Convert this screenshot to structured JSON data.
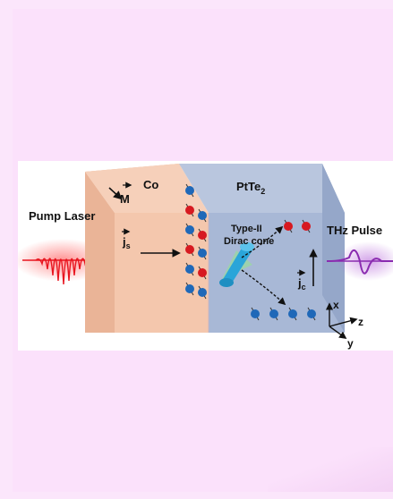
{
  "labels": {
    "pump_laser": "Pump Laser",
    "thz_pulse": "THz Pulse",
    "co": "Co",
    "ptte2_base": "PtTe",
    "ptte2_sub": "2",
    "magnetization": "M",
    "spin_current_base": "j",
    "spin_current_sub": "s",
    "charge_current_base": "j",
    "charge_current_sub": "c",
    "cone_line1": "Type-II",
    "cone_line2": "Dirac cone",
    "axis_x": "x",
    "axis_y": "y",
    "axis_z": "z"
  },
  "colors": {
    "co_layer": "#f4c7ad",
    "ptte2_layer": "#a8b8d6",
    "laser": "#e8141e",
    "thz": "#8a2bb0",
    "spin_up": "#d71920",
    "spin_down": "#1f68b8",
    "cone": "#2aa5d9"
  }
}
